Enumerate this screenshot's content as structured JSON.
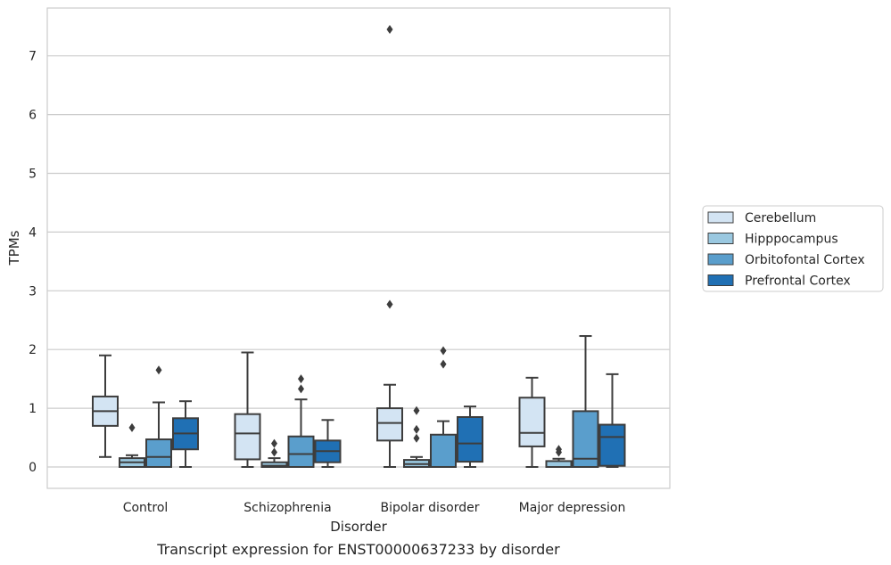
{
  "caption": "Transcript expression for ENST00000637233 by disorder",
  "chart_data": {
    "type": "boxplot",
    "title": "",
    "xlabel": "Disorder",
    "ylabel": "TPMs",
    "ylim": [
      -0.35,
      7.85
    ],
    "yticks": [
      0,
      1,
      2,
      3,
      4,
      5,
      6,
      7
    ],
    "grid": "horizontal",
    "legend_position": "right",
    "categories": [
      "Control",
      "Schizophrenia",
      "Bipolar disorder",
      "Major depression"
    ],
    "series": [
      {
        "name": "Cerebellum",
        "color": "#d3e4f3",
        "boxes": [
          {
            "min": 0.17,
            "q1": 0.7,
            "median": 0.95,
            "q3": 1.2,
            "max": 1.9,
            "outliers": []
          },
          {
            "min": 0.0,
            "q1": 0.13,
            "median": 0.57,
            "q3": 0.9,
            "max": 1.95,
            "outliers": []
          },
          {
            "min": 0.0,
            "q1": 0.45,
            "median": 0.75,
            "q3": 1.0,
            "max": 1.4,
            "outliers": [
              2.77,
              7.45
            ]
          },
          {
            "min": 0.0,
            "q1": 0.35,
            "median": 0.58,
            "q3": 1.18,
            "max": 1.52,
            "outliers": []
          }
        ]
      },
      {
        "name": "Hipppocampus",
        "color": "#9ac8e0",
        "boxes": [
          {
            "min": 0.0,
            "q1": 0.0,
            "median": 0.08,
            "q3": 0.15,
            "max": 0.2,
            "outliers": [
              0.67
            ]
          },
          {
            "min": 0.0,
            "q1": 0.0,
            "median": 0.02,
            "q3": 0.08,
            "max": 0.15,
            "outliers": [
              0.25,
              0.4
            ]
          },
          {
            "min": 0.0,
            "q1": 0.0,
            "median": 0.05,
            "q3": 0.12,
            "max": 0.17,
            "outliers": [
              0.49,
              0.64,
              0.96
            ]
          },
          {
            "min": 0.0,
            "q1": 0.0,
            "median": 0.0,
            "q3": 0.1,
            "max": 0.14,
            "outliers": [
              0.25,
              0.3
            ]
          }
        ]
      },
      {
        "name": "Orbitofontal Cortex",
        "color": "#5a9ecc",
        "boxes": [
          {
            "min": 0.0,
            "q1": 0.0,
            "median": 0.17,
            "q3": 0.47,
            "max": 1.1,
            "outliers": [
              1.65
            ]
          },
          {
            "min": 0.0,
            "q1": 0.0,
            "median": 0.22,
            "q3": 0.52,
            "max": 1.15,
            "outliers": [
              1.33,
              1.5
            ]
          },
          {
            "min": 0.0,
            "q1": 0.0,
            "median": 0.0,
            "q3": 0.55,
            "max": 0.78,
            "outliers": [
              1.75,
              1.98
            ]
          },
          {
            "min": 0.0,
            "q1": 0.0,
            "median": 0.14,
            "q3": 0.95,
            "max": 2.23,
            "outliers": []
          }
        ]
      },
      {
        "name": "Prefrontal Cortex",
        "color": "#2070b4",
        "boxes": [
          {
            "min": 0.0,
            "q1": 0.3,
            "median": 0.57,
            "q3": 0.83,
            "max": 1.12,
            "outliers": []
          },
          {
            "min": 0.0,
            "q1": 0.08,
            "median": 0.27,
            "q3": 0.45,
            "max": 0.8,
            "outliers": []
          },
          {
            "min": 0.0,
            "q1": 0.09,
            "median": 0.4,
            "q3": 0.85,
            "max": 1.03,
            "outliers": []
          },
          {
            "min": 0.0,
            "q1": 0.02,
            "median": 0.51,
            "q3": 0.72,
            "max": 1.58,
            "outliers": []
          }
        ]
      }
    ]
  }
}
